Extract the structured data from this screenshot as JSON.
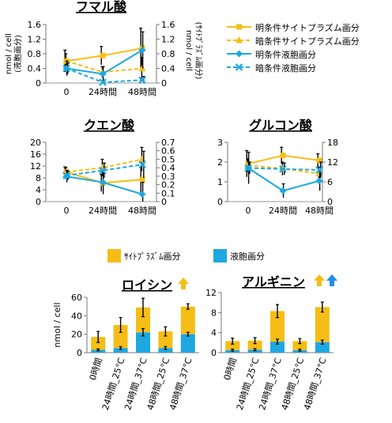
{
  "colors": {
    "yellow": "#f6bd16",
    "blue": "#1ea7e1",
    "black": "#000000",
    "arrow_orange": "#f6bd16",
    "arrow_blue": "#1e90e8"
  },
  "legend_top": [
    {
      "label": "明条件サイトプラズム画分",
      "color": "#f6bd16",
      "dashed": false,
      "marker": "square"
    },
    {
      "label": "暗条件サイトプラズム画分",
      "color": "#f6bd16",
      "dashed": true,
      "marker": "triangle"
    },
    {
      "label": "明条件液胞画分",
      "color": "#1ea7e1",
      "dashed": false,
      "marker": "diamond"
    },
    {
      "label": "暗条件液胞画分",
      "color": "#1ea7e1",
      "dashed": true,
      "marker": "x"
    }
  ],
  "legend_bottom": [
    {
      "label": "ｻｲﾄﾌﾟﾗｽﾞﾑ画分",
      "color": "#f6bd16"
    },
    {
      "label": "液胞画分",
      "color": "#1ea7e1"
    }
  ],
  "chart_data": [
    {
      "type": "line",
      "title": "フマル酸",
      "x": [
        "0",
        "24時間",
        "48時間"
      ],
      "ylabel_left": "nmol / cell\n(液胞画分)",
      "ylabel_right": "nmol / cell\n(ｻｲﾄﾌﾟﾗｽﾞﾑ画分)",
      "ylim_left": [
        0,
        1.6
      ],
      "yticks_left": [
        "0",
        "0.4",
        "0.8",
        "1.2",
        "1.6"
      ],
      "ylim_right": [
        0,
        1.6
      ],
      "yticks_right": [
        "0",
        "0.4",
        "0.8",
        "1.2",
        "1.6"
      ],
      "series": [
        {
          "name": "明条件サイトプラズム画分",
          "axis": "right",
          "values": [
            0.6,
            0.75,
            0.95
          ],
          "err": [
            0.3,
            0.25,
            0.55
          ]
        },
        {
          "name": "暗条件サイトプラズム画分",
          "axis": "right",
          "values": [
            0.6,
            0.3,
            0.4
          ],
          "err": [
            0.2,
            0.15,
            0.3
          ]
        },
        {
          "name": "明条件液胞画分",
          "axis": "left",
          "values": [
            0.4,
            0.25,
            0.9
          ],
          "err": [
            0.2,
            0.2,
            0.5
          ]
        },
        {
          "name": "暗条件液胞画分",
          "axis": "left",
          "values": [
            0.4,
            0.02,
            0.08
          ],
          "err": [
            0.15,
            0.05,
            0.1
          ]
        }
      ]
    },
    {
      "type": "line",
      "title": "クエン酸",
      "x": [
        "0",
        "24時間",
        "48時間"
      ],
      "ylim_left": [
        0,
        20
      ],
      "yticks_left": [
        "0",
        "4",
        "8",
        "12",
        "16",
        "20"
      ],
      "ylim_right": [
        0,
        0.7
      ],
      "yticks_right": [
        "0",
        "0.1",
        "0.2",
        "0.3",
        "0.4",
        "0.5",
        "0.6",
        "0.7"
      ],
      "series": [
        {
          "name": "明条件サイトプラズム画分",
          "axis": "right",
          "values": [
            0.35,
            0.22,
            0.26
          ],
          "err": [
            0.06,
            0.1,
            0.15
          ]
        },
        {
          "name": "暗条件サイトプラズム画分",
          "axis": "right",
          "values": [
            0.35,
            0.4,
            0.5
          ],
          "err": [
            0.05,
            0.1,
            0.14
          ]
        },
        {
          "name": "明条件液胞画分",
          "axis": "left",
          "values": [
            8.5,
            6.5,
            2.5
          ],
          "err": [
            2,
            4,
            4
          ]
        },
        {
          "name": "暗条件液胞画分",
          "axis": "left",
          "values": [
            8.8,
            10.5,
            12.5
          ],
          "err": [
            1.5,
            2.5,
            4.5
          ]
        }
      ]
    },
    {
      "type": "line",
      "title": "グルコン酸",
      "x": [
        "0",
        "24時間",
        "48時間"
      ],
      "ylim_left": [
        0,
        3
      ],
      "yticks_left": [
        "0",
        "1",
        "2",
        "3"
      ],
      "ylim_right": [
        0,
        18
      ],
      "yticks_right": [
        "0",
        "6",
        "12",
        "18"
      ],
      "series": [
        {
          "name": "明条件サイトプラズム画分",
          "axis": "right",
          "values": [
            11.5,
            14,
            12.5
          ],
          "err": [
            4,
            2.5,
            2
          ]
        },
        {
          "name": "暗条件サイトプラズム画分",
          "axis": "right",
          "values": [
            11,
            10,
            8.5
          ],
          "err": [
            2,
            2,
            2
          ]
        },
        {
          "name": "明条件液胞画分",
          "axis": "left",
          "values": [
            1.7,
            0.55,
            1.05
          ],
          "err": [
            0.8,
            0.35,
            0.5
          ]
        },
        {
          "name": "暗条件液胞画分",
          "axis": "left",
          "values": [
            1.7,
            1.65,
            1.6
          ],
          "err": [
            0.3,
            0.3,
            0.4
          ]
        }
      ]
    },
    {
      "type": "bar",
      "title": "ロイシン",
      "stacked": true,
      "ylabel": "nmol / cell",
      "ylim": [
        0,
        60
      ],
      "yticks": [
        "0",
        "20",
        "40",
        "60"
      ],
      "categories": [
        "0時間",
        "24時間_25°C",
        "24時間_37°C",
        "48時間_25°C",
        "48時間_37°C"
      ],
      "series": [
        {
          "name": "液胞画分",
          "values": [
            3,
            5,
            22,
            5,
            20
          ],
          "err": [
            1,
            1.5,
            4,
            1.5,
            2
          ]
        },
        {
          "name": "ｻｲﾄﾌﾟﾗｽﾞﾑ画分",
          "values": [
            14,
            25,
            27,
            18,
            30
          ],
          "err": [
            6,
            8,
            10,
            5,
            3
          ]
        }
      ],
      "arrows": [
        "up-orange"
      ]
    },
    {
      "type": "bar",
      "title": "アルギニン",
      "stacked": true,
      "ylim": [
        0,
        12
      ],
      "yticks": [
        "0",
        "4",
        "8",
        "12"
      ],
      "categories": [
        "0時間",
        "24時間_25°C",
        "24時間_37°C",
        "48時間_25°C",
        "48時間_37°C"
      ],
      "series": [
        {
          "name": "液胞画分",
          "values": [
            0.5,
            0.6,
            2.2,
            0.5,
            2.1
          ],
          "err": [
            0.2,
            0.2,
            0.5,
            0.2,
            0.4
          ]
        },
        {
          "name": "ｻｲﾄﾌﾟﾗｽﾞﾑ画分",
          "values": [
            1.8,
            1.8,
            6.1,
            1.8,
            7.0
          ],
          "err": [
            0.6,
            0.6,
            1.3,
            0.5,
            1.0
          ]
        }
      ],
      "arrows": [
        "up-orange",
        "up-blue"
      ]
    }
  ]
}
